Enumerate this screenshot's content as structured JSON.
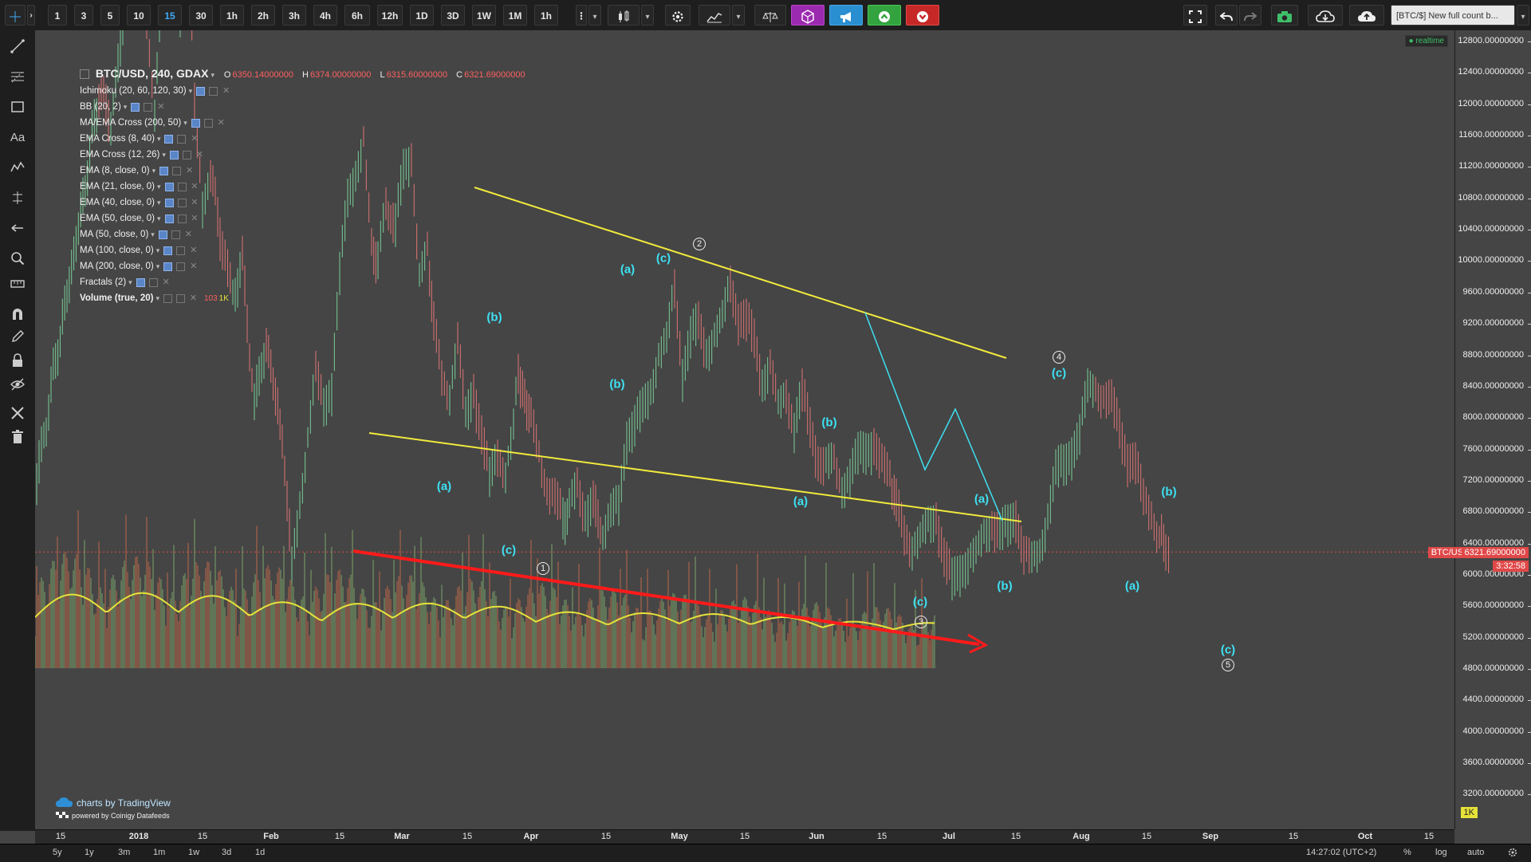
{
  "toolbar": {
    "intervals": [
      "1",
      "3",
      "5",
      "10",
      "15",
      "30",
      "1h",
      "2h",
      "3h",
      "4h",
      "6h",
      "12h",
      "1D",
      "3D",
      "1W",
      "1M",
      "1h"
    ],
    "active_interval": "15",
    "symbol_ticker": "[BTC/$] New full count b..."
  },
  "legend": {
    "symbol": "BTC/USD, 240, GDAX",
    "open_label": "O",
    "open": "6350.14000000",
    "high_label": "H",
    "high": "6374.00000000",
    "low_label": "L",
    "low": "6315.60000000",
    "close_label": "C",
    "close": "6321.69000000",
    "indicators": [
      "Ichimoku (20, 60, 120, 30)",
      "BB (20, 2)",
      "MA/EMA Cross (200, 50)",
      "EMA Cross (8, 40)",
      "EMA Cross (12, 26)",
      "EMA (8, close, 0)",
      "EMA (21, close, 0)",
      "EMA (40, close, 0)",
      "EMA (50, close, 0)",
      "MA (50, close, 0)",
      "MA (100, close, 0)",
      "MA (200, close, 0)",
      "Fractals (2)",
      "Volume (true, 20)"
    ],
    "volume_value": "103",
    "volume_ma": "1K"
  },
  "realtime_badge": "realtime",
  "price_axis": {
    "ticks": [
      "12800.00000000",
      "12400.00000000",
      "12000.00000000",
      "11600.00000000",
      "11200.00000000",
      "10800.00000000",
      "10400.00000000",
      "10000.00000000",
      "9600.00000000",
      "9200.00000000",
      "8800.00000000",
      "8400.00000000",
      "8000.00000000",
      "7600.00000000",
      "7200.00000000",
      "6800.00000000",
      "6400.00000000",
      "6000.00000000",
      "5600.00000000",
      "5200.00000000",
      "4800.00000000",
      "4400.00000000",
      "4000.00000000",
      "3600.00000000",
      "3200.00000000"
    ],
    "symbol_tag": "BTC/USD",
    "last_price": "6321.69000000",
    "countdown": "3:32:58",
    "volume_tag": "1K"
  },
  "time_axis": {
    "ticks": [
      "15",
      "2018",
      "15",
      "Feb",
      "15",
      "Mar",
      "15",
      "Apr",
      "15",
      "May",
      "15",
      "Jun",
      "15",
      "Jul",
      "15",
      "Aug",
      "15",
      "Sep",
      "15",
      "Oct",
      "15"
    ]
  },
  "bottom": {
    "ranges": [
      "5y",
      "1y",
      "3m",
      "1m",
      "1w",
      "3d",
      "1d"
    ],
    "clock": "14:27:02 (UTC+2)",
    "percent": "%",
    "log": "log",
    "auto": "auto"
  },
  "watermark": {
    "brand": "charts by TradingView",
    "feed": "powered by Coinigy Datafeeds"
  },
  "wave_labels": [
    "(a)",
    "(b)",
    "(c)"
  ],
  "wave_numbers": [
    "1",
    "2",
    "3",
    "4",
    "5"
  ],
  "colors": {
    "background": "#454545",
    "wave_label": "#3ee0f2",
    "trendline": "#f2ea3c",
    "volume_trend": "#ff1a1a",
    "volume_ma": "#e6e23a",
    "price_line": "#e04848"
  }
}
